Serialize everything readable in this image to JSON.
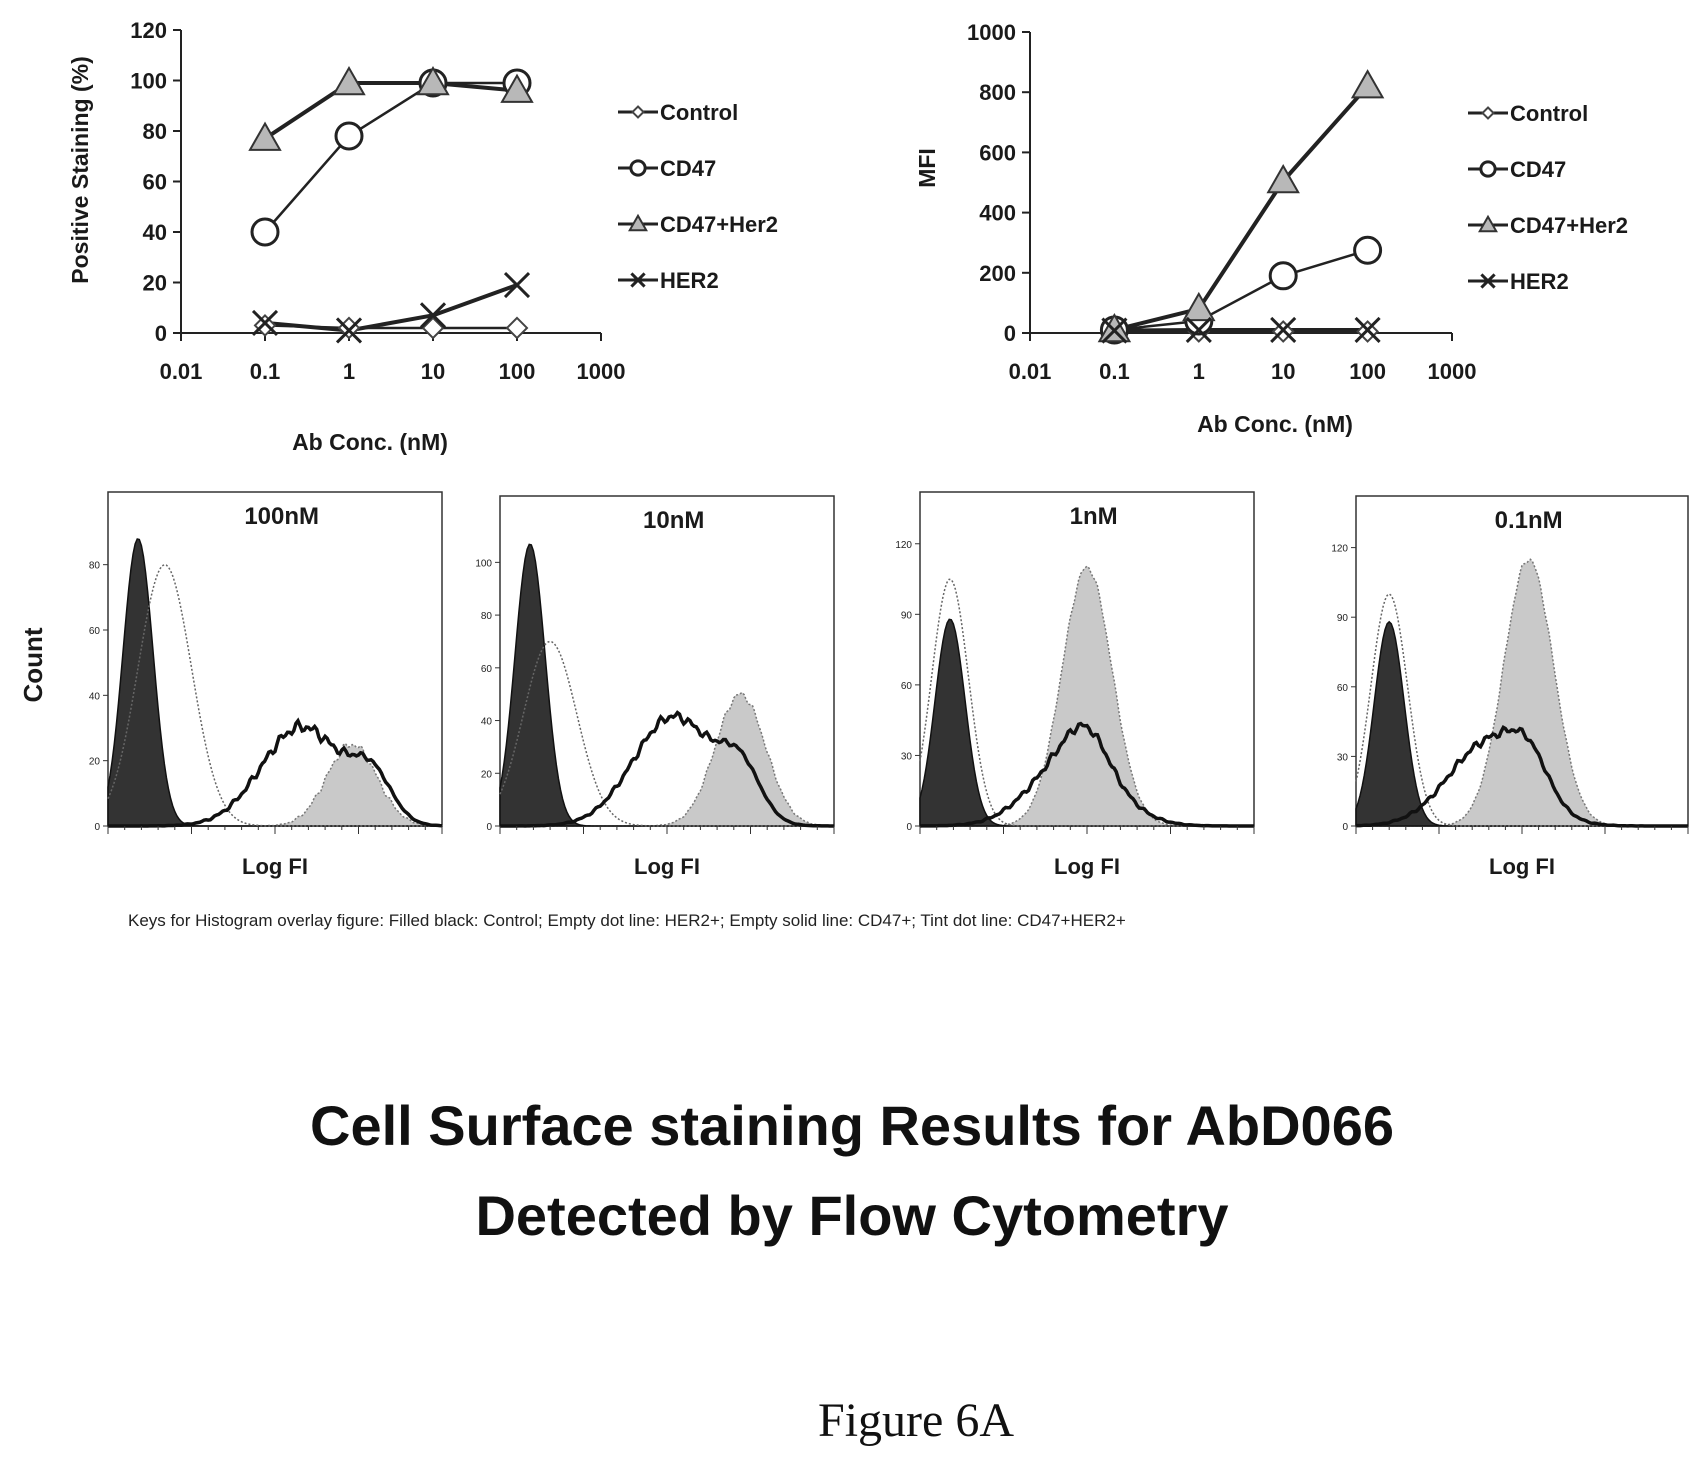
{
  "chart_data": [
    {
      "type": "line",
      "ylabel": "Positive Staining (%)",
      "xlabel": "Ab Conc. (nM)",
      "xscale": "log",
      "xlim": [
        0.01,
        1000
      ],
      "ylim": [
        0,
        120
      ],
      "xticks": [
        "0.01",
        "0.1",
        "1",
        "10",
        "100",
        "1000"
      ],
      "yticks": [
        "0",
        "20",
        "40",
        "60",
        "80",
        "100",
        "120"
      ],
      "legend_position": "right",
      "series": [
        {
          "name": "Control",
          "marker": "diamond",
          "x": [
            0.1,
            1,
            10,
            100
          ],
          "y": [
            3,
            2,
            2,
            2
          ]
        },
        {
          "name": "CD47",
          "marker": "circle",
          "x": [
            0.1,
            1,
            10,
            100
          ],
          "y": [
            40,
            78,
            99,
            99
          ]
        },
        {
          "name": "CD47+Her2",
          "marker": "triangle",
          "x": [
            0.1,
            1,
            10,
            100
          ],
          "y": [
            77,
            99,
            99,
            96
          ]
        },
        {
          "name": "HER2",
          "marker": "x",
          "x": [
            0.1,
            1,
            10,
            100
          ],
          "y": [
            4,
            1,
            7,
            19
          ]
        }
      ]
    },
    {
      "type": "line",
      "ylabel": "MFI",
      "xlabel": "Ab Conc. (nM)",
      "xscale": "log",
      "xlim": [
        0.01,
        1000
      ],
      "ylim": [
        0,
        1000
      ],
      "xticks": [
        "0.01",
        "0.1",
        "1",
        "10",
        "100",
        "1000"
      ],
      "yticks": [
        "0",
        "200",
        "400",
        "600",
        "800",
        "1000"
      ],
      "legend_position": "right",
      "series": [
        {
          "name": "Control",
          "marker": "diamond",
          "x": [
            0.1,
            1,
            10,
            100
          ],
          "y": [
            5,
            5,
            5,
            5
          ]
        },
        {
          "name": "CD47",
          "marker": "circle",
          "x": [
            0.1,
            1,
            10,
            100
          ],
          "y": [
            10,
            40,
            190,
            275
          ]
        },
        {
          "name": "CD47+Her2",
          "marker": "triangle",
          "x": [
            0.1,
            1,
            10,
            100
          ],
          "y": [
            10,
            80,
            505,
            820
          ]
        },
        {
          "name": "HER2",
          "marker": "x",
          "x": [
            0.1,
            1,
            10,
            100
          ],
          "y": [
            8,
            10,
            10,
            10
          ]
        }
      ]
    }
  ],
  "histograms": {
    "ylabel": "Count",
    "xlabel": "Log FI",
    "panels": [
      {
        "title": "100nM",
        "ymax": 90,
        "yticks": [
          "0",
          "20",
          "40",
          "60",
          "80"
        ],
        "peaks": {
          "control": 88,
          "her2": 80,
          "cd47": 38,
          "cd47her2": 25
        }
      },
      {
        "title": "10nM",
        "ymax": 110,
        "yticks": [
          "0",
          "20",
          "40",
          "60",
          "80",
          "100"
        ],
        "peaks": {
          "control": 107,
          "her2": 70,
          "cd47": 52,
          "cd47her2": 50
        }
      },
      {
        "title": "1nM",
        "ymax": 125,
        "yticks": [
          "0",
          "30",
          "60",
          "90",
          "120"
        ],
        "peaks": {
          "control": 88,
          "her2": 105,
          "cd47": 38,
          "cd47her2": 110
        }
      },
      {
        "title": "0.1nM",
        "ymax": 125,
        "yticks": [
          "0",
          "30",
          "60",
          "90",
          "120"
        ],
        "peaks": {
          "control": 88,
          "her2": 100,
          "cd47": 45,
          "cd47her2": 115
        }
      }
    ]
  },
  "keys_text": "Keys for Histogram overlay figure:  Filled black: Control; Empty dot line: HER2+; Empty solid line: CD47+; Tint dot line: CD47+HER2+",
  "title_line1": "Cell Surface staining Results for AbD066",
  "title_line2": "Detected by Flow Cytometry",
  "caption": "Figure 6A"
}
